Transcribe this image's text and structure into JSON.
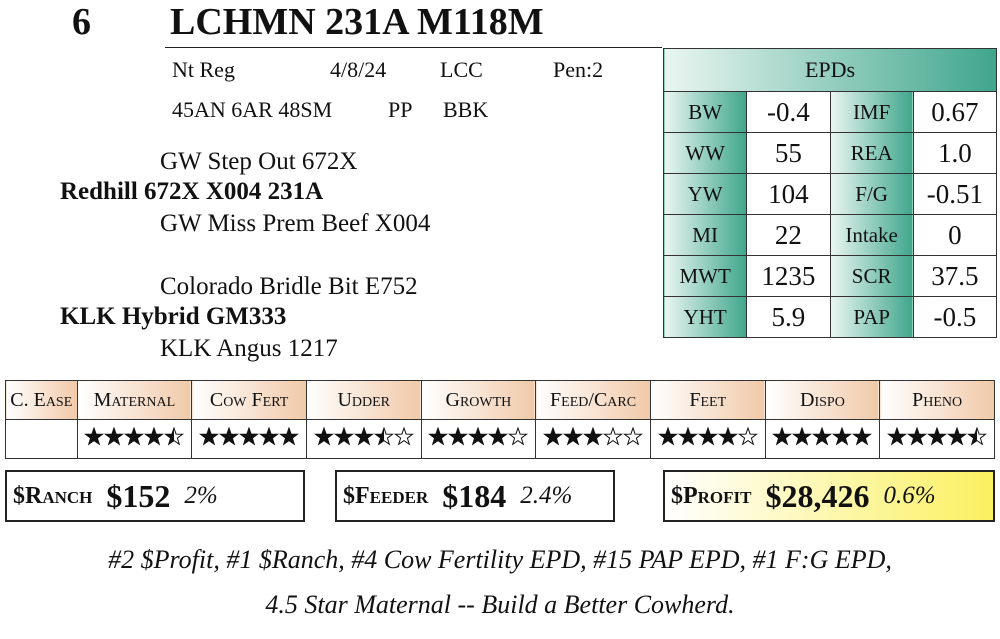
{
  "lot": "6",
  "name": "LCHMN 231A M118M",
  "info": [
    [
      "Nt Reg",
      "4/8/24",
      "LCC",
      "Pen:2"
    ],
    [
      "45AN 6AR 48SM",
      "PP",
      "BBK"
    ]
  ],
  "pedigree": [
    "GW Step Out 672X",
    "Redhill 672X X004 231A",
    "GW Miss Prem Beef X004",
    "Colorado Bridle Bit E752",
    "KLK Hybrid GM333",
    "KLK Angus 1217"
  ],
  "epds": {
    "title": "EPDs",
    "rows": [
      [
        "BW",
        "-0.4",
        "IMF",
        "0.67"
      ],
      [
        "WW",
        "55",
        "REA",
        "1.0"
      ],
      [
        "YW",
        "104",
        "F/G",
        "-0.51"
      ],
      [
        "MI",
        "22",
        "Intake",
        "0"
      ],
      [
        "MWT",
        "1235",
        "SCR",
        "37.5"
      ],
      [
        "YHT",
        "5.9",
        "PAP",
        "-0.5"
      ]
    ]
  },
  "ratings": {
    "headers": [
      "C. Ease",
      "Maternal",
      "Cow Fert",
      "Udder",
      "Growth",
      "Feed/Carc",
      "Feet",
      "Dispo",
      "Pheno"
    ],
    "stars": [
      null,
      4.5,
      5,
      3.5,
      4,
      3,
      4,
      5,
      4.5
    ]
  },
  "indexes": [
    {
      "label": "$Ranch",
      "value": "$152",
      "pct": "2%"
    },
    {
      "label": "$Feeder",
      "value": "$184",
      "pct": "2.4%"
    },
    {
      "label": "$Profit",
      "value": "$28,426",
      "pct": "0.6%"
    }
  ],
  "notes": [
    "#2 $Profit, #1 $Ranch, #4 Cow Fertility EPD, #15 PAP EPD, #1 F:G EPD,",
    "4.5 Star Maternal -- Build a Better Cowherd."
  ]
}
